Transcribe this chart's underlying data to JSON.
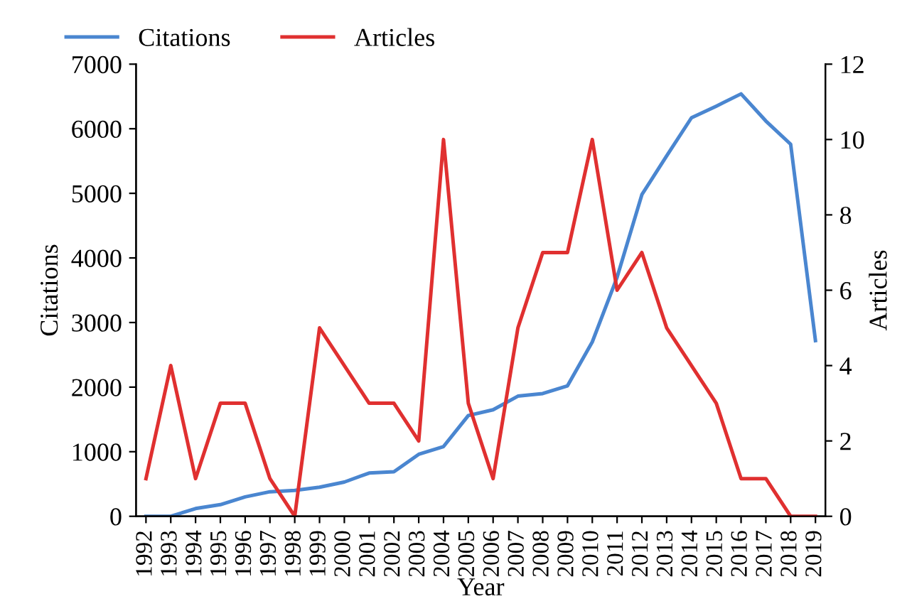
{
  "chart_data": {
    "type": "line",
    "xlabel": "Year",
    "ylabel": "Citations",
    "y2label": "Articles",
    "categories": [
      "1992",
      "1993",
      "1994",
      "1995",
      "1996",
      "1997",
      "1998",
      "1999",
      "2000",
      "2001",
      "2002",
      "2003",
      "2004",
      "2005",
      "2006",
      "2007",
      "2008",
      "2009",
      "2010",
      "2011",
      "2012",
      "2013",
      "2014",
      "2015",
      "2016",
      "2017",
      "2018",
      "2019"
    ],
    "series": [
      {
        "name": "Citations",
        "color": "#4a86d0",
        "values": [
          0,
          0,
          120,
          180,
          300,
          380,
          400,
          450,
          530,
          670,
          690,
          960,
          1080,
          1560,
          1650,
          1860,
          1900,
          2020,
          2700,
          3700,
          4980,
          5580,
          6170,
          6350,
          6540,
          6120,
          5760,
          2720
        ]
      },
      {
        "name": "Articles",
        "color": "#e03030",
        "axis": "y2",
        "values": [
          1,
          4,
          1,
          3,
          3,
          1,
          0,
          5,
          4,
          3,
          3,
          2,
          10,
          3,
          1,
          5,
          7,
          7,
          10,
          6,
          7,
          5,
          4,
          3,
          1,
          1,
          0,
          0
        ]
      }
    ],
    "ylim": [
      0,
      7000
    ],
    "yticks": [
      0,
      1000,
      2000,
      3000,
      4000,
      5000,
      6000,
      7000
    ],
    "y2lim": [
      0,
      12
    ],
    "y2ticks": [
      0,
      2,
      4,
      6,
      8,
      10,
      12
    ],
    "legend": "top left",
    "grid": false,
    "marker": "none",
    "line_style": "solid"
  }
}
